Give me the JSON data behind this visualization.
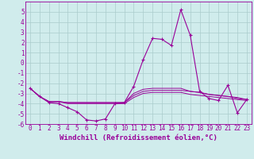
{
  "xlabel": "Windchill (Refroidissement éolien,°C)",
  "x_hours": [
    0,
    1,
    2,
    3,
    4,
    5,
    6,
    7,
    8,
    9,
    10,
    11,
    12,
    13,
    14,
    15,
    16,
    17,
    18,
    19,
    20,
    21,
    22,
    23
  ],
  "main_line": [
    -2.5,
    -3.3,
    -3.9,
    -4.0,
    -4.4,
    -4.8,
    -5.6,
    -5.7,
    -5.5,
    -4.0,
    -3.9,
    -2.3,
    0.3,
    2.4,
    2.3,
    1.7,
    5.2,
    2.7,
    -2.8,
    -3.5,
    -3.7,
    -2.2,
    -4.9,
    -3.6
  ],
  "line2": [
    -2.5,
    -3.3,
    -3.8,
    -3.8,
    -3.9,
    -3.9,
    -3.9,
    -3.9,
    -3.9,
    -3.9,
    -3.9,
    -3.0,
    -2.6,
    -2.5,
    -2.5,
    -2.5,
    -2.5,
    -2.8,
    -2.9,
    -3.1,
    -3.2,
    -3.3,
    -3.4,
    -3.6
  ],
  "line3": [
    -2.5,
    -3.3,
    -3.8,
    -3.8,
    -3.9,
    -3.9,
    -3.9,
    -3.9,
    -3.9,
    -3.9,
    -3.9,
    -3.2,
    -2.8,
    -2.7,
    -2.7,
    -2.7,
    -2.7,
    -2.8,
    -2.9,
    -3.1,
    -3.2,
    -3.3,
    -3.5,
    -3.6
  ],
  "line4": [
    -2.5,
    -3.3,
    -3.8,
    -3.8,
    -4.0,
    -4.0,
    -4.0,
    -4.0,
    -4.0,
    -4.0,
    -4.0,
    -3.4,
    -3.0,
    -2.9,
    -2.9,
    -2.9,
    -2.9,
    -3.1,
    -3.2,
    -3.3,
    -3.4,
    -3.5,
    -3.6,
    -3.7
  ],
  "line_color": "#990099",
  "bg_color": "#d0ecec",
  "grid_color": "#aacccc",
  "ylim": [
    -6,
    6
  ],
  "yticks": [
    -6,
    -5,
    -4,
    -3,
    -2,
    -1,
    0,
    1,
    2,
    3,
    4,
    5
  ],
  "tick_label_fontsize": 5.5,
  "xlabel_fontsize": 6.5
}
